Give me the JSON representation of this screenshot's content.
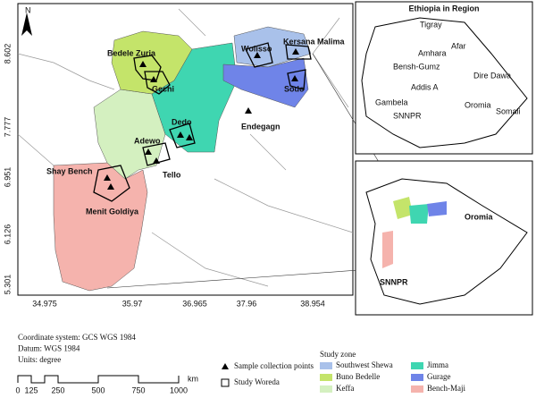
{
  "north": "N",
  "lat_ticks": [
    "8.602",
    "7.777",
    "6.951",
    "6.126",
    "5.301"
  ],
  "lon_ticks": [
    "34.975",
    "35.97",
    "36.965",
    "37.96",
    "38.954"
  ],
  "places": [
    "Bedele Zuria",
    "Gechi",
    "Wolisso",
    "Kersana Malima",
    "Sodo",
    "Endegagn",
    "Dedo",
    "Adewo",
    "Tello",
    "Shay Bench",
    "Menit Goldiya"
  ],
  "inset_region": {
    "title": "Ethiopia in Region",
    "labels": [
      "Tigray",
      "Afar",
      "Amhara",
      "Bensh-Gumz",
      "Dire Dawa",
      "Addis A",
      "Gambela",
      "Oromia",
      "Somali",
      "SNNPR"
    ]
  },
  "inset_zone": {
    "labels": [
      "Oromia",
      "SNNPR"
    ]
  },
  "notes": [
    "Coordinate system: GCS WGS 1984",
    "Datum: WGS 1984",
    "Units: degree"
  ],
  "scale": {
    "labels": [
      "0",
      "125",
      "250",
      "500",
      "750",
      "1000"
    ],
    "unit": "km"
  },
  "legend": [
    "Sample collection points",
    "Study Woreda"
  ],
  "study_zone": {
    "title": "Study zone",
    "zones": [
      {
        "name": "Southwest Shewa",
        "color": "#a9c1ea"
      },
      {
        "name": "Jimma",
        "color": "#3fd6b1"
      },
      {
        "name": "Buno Bedelle",
        "color": "#c4e46a"
      },
      {
        "name": "Gurage",
        "color": "#6f84e8"
      },
      {
        "name": "Keffa",
        "color": "#d4f0c0"
      },
      {
        "name": "Bench-Maji",
        "color": "#f5b3ad"
      }
    ]
  }
}
